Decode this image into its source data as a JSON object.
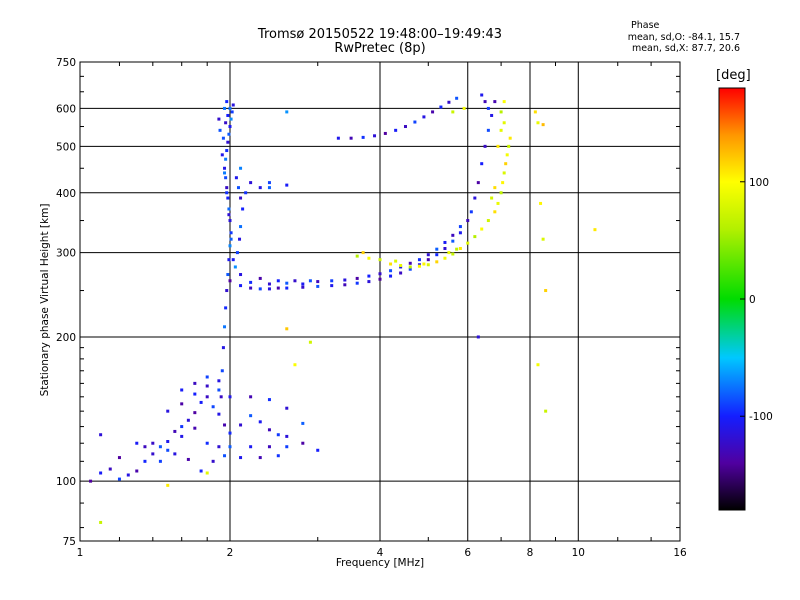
{
  "header": {
    "title_line1": "Tromsø 20150522 19:48:00–19:49:43",
    "title_line2": "RwPretec (8p)",
    "phase_title": "Phase",
    "phase_o": "mean, sd,O: -84.1, 15.7",
    "phase_x": "mean, sd,X:  87.7, 20.6"
  },
  "chart_data": {
    "type": "scatter",
    "xlabel": "Frequency [MHz]",
    "ylabel": "Stationary phase Virtual Height [km]",
    "xscale": "log",
    "yscale": "log",
    "xlim": [
      1,
      16
    ],
    "ylim": [
      75,
      750
    ],
    "x_ticks": [
      1,
      2,
      4,
      6,
      8,
      10,
      16
    ],
    "y_ticks": [
      75,
      100,
      200,
      300,
      400,
      500,
      600,
      750
    ],
    "grid": true,
    "colorbar": {
      "label": "[deg]",
      "range": [
        -180,
        180
      ],
      "ticks": [
        100,
        0,
        -100
      ]
    },
    "series": [
      {
        "trace": "low-frequency scatter (es/e region)",
        "phase": -110,
        "points": [
          [
            1.05,
            100
          ],
          [
            1.1,
            104
          ],
          [
            1.15,
            106
          ],
          [
            1.2,
            101
          ],
          [
            1.25,
            103
          ],
          [
            1.3,
            105
          ],
          [
            1.35,
            110
          ],
          [
            1.4,
            114
          ],
          [
            1.45,
            118
          ],
          [
            1.5,
            121
          ],
          [
            1.55,
            127
          ],
          [
            1.6,
            130
          ],
          [
            1.65,
            134
          ],
          [
            1.7,
            139
          ],
          [
            1.75,
            146
          ],
          [
            1.8,
            150
          ],
          [
            1.85,
            143
          ],
          [
            1.9,
            138
          ],
          [
            1.95,
            131
          ],
          [
            2.0,
            126
          ],
          [
            2.1,
            131
          ],
          [
            2.2,
            137
          ],
          [
            2.3,
            133
          ],
          [
            2.4,
            128
          ],
          [
            2.5,
            125
          ],
          [
            2.6,
            124
          ],
          [
            2.8,
            120
          ],
          [
            3.0,
            116
          ],
          [
            1.4,
            120
          ],
          [
            1.5,
            116
          ],
          [
            1.6,
            124
          ],
          [
            1.7,
            129
          ],
          [
            1.8,
            120
          ],
          [
            1.9,
            118
          ],
          [
            2.0,
            118
          ],
          [
            2.2,
            118
          ],
          [
            2.4,
            118
          ],
          [
            2.6,
            118
          ],
          [
            1.5,
            140
          ],
          [
            1.6,
            145
          ],
          [
            1.7,
            152
          ],
          [
            1.8,
            158
          ],
          [
            1.9,
            155
          ],
          [
            2.0,
            150
          ],
          [
            2.2,
            150
          ],
          [
            2.4,
            148
          ],
          [
            2.6,
            142
          ],
          [
            2.8,
            132
          ],
          [
            1.3,
            120
          ],
          [
            1.35,
            118
          ],
          [
            1.45,
            110
          ],
          [
            1.55,
            114
          ],
          [
            1.65,
            111
          ],
          [
            1.75,
            105
          ],
          [
            1.85,
            110
          ],
          [
            1.95,
            113
          ],
          [
            2.1,
            112
          ],
          [
            2.3,
            112
          ],
          [
            2.5,
            113
          ],
          [
            1.1,
            125
          ],
          [
            1.2,
            112
          ],
          [
            1.6,
            155
          ],
          [
            1.7,
            160
          ],
          [
            1.8,
            165
          ],
          [
            1.9,
            162
          ]
        ]
      },
      {
        "trace": "O-mode near 2 MHz vertical",
        "phase": -95,
        "points": [
          [
            1.92,
            150
          ],
          [
            1.93,
            170
          ],
          [
            1.94,
            190
          ],
          [
            1.95,
            210
          ],
          [
            1.96,
            230
          ],
          [
            1.97,
            250
          ],
          [
            1.98,
            270
          ],
          [
            1.99,
            290
          ],
          [
            2.0,
            310
          ],
          [
            2.01,
            330
          ],
          [
            2.0,
            350
          ],
          [
            1.99,
            370
          ],
          [
            1.98,
            390
          ],
          [
            1.97,
            410
          ],
          [
            1.96,
            430
          ],
          [
            1.95,
            450
          ],
          [
            1.96,
            470
          ],
          [
            1.97,
            490
          ],
          [
            1.98,
            510
          ],
          [
            1.99,
            530
          ],
          [
            2.0,
            550
          ],
          [
            2.01,
            570
          ],
          [
            2.02,
            590
          ],
          [
            2.03,
            610
          ],
          [
            2.0,
            600
          ],
          [
            1.98,
            580
          ],
          [
            1.96,
            560
          ],
          [
            1.94,
            520
          ],
          [
            1.93,
            480
          ],
          [
            1.95,
            440
          ],
          [
            1.97,
            400
          ],
          [
            1.99,
            360
          ],
          [
            2.01,
            320
          ],
          [
            2.03,
            290
          ],
          [
            2.05,
            280
          ],
          [
            2.07,
            300
          ],
          [
            2.09,
            320
          ],
          [
            2.1,
            340
          ],
          [
            2.12,
            370
          ],
          [
            2.1,
            390
          ],
          [
            2.08,
            410
          ],
          [
            2.06,
            430
          ],
          [
            2.1,
            450
          ],
          [
            2.15,
            400
          ],
          [
            2.2,
            420
          ],
          [
            2.4,
            410
          ],
          [
            2.6,
            415
          ],
          [
            2.6,
            590
          ],
          [
            2.4,
            420
          ],
          [
            2.3,
            410
          ],
          [
            1.95,
            600
          ],
          [
            1.97,
            620
          ],
          [
            1.9,
            570
          ],
          [
            1.91,
            540
          ]
        ]
      },
      {
        "trace": "O-mode F trace",
        "phase": -110,
        "points": [
          [
            2.0,
            262
          ],
          [
            2.1,
            256
          ],
          [
            2.2,
            253
          ],
          [
            2.3,
            252
          ],
          [
            2.4,
            252
          ],
          [
            2.5,
            253
          ],
          [
            2.6,
            253
          ],
          [
            2.8,
            254
          ],
          [
            3.0,
            255
          ],
          [
            3.2,
            256
          ],
          [
            3.4,
            257
          ],
          [
            3.6,
            259
          ],
          [
            3.8,
            261
          ],
          [
            4.0,
            264
          ],
          [
            4.2,
            268
          ],
          [
            4.4,
            272
          ],
          [
            4.6,
            277
          ],
          [
            4.8,
            283
          ],
          [
            5.0,
            290
          ],
          [
            5.2,
            297
          ],
          [
            5.4,
            306
          ],
          [
            5.6,
            317
          ],
          [
            5.8,
            330
          ],
          [
            6.0,
            350
          ],
          [
            6.1,
            365
          ],
          [
            6.2,
            390
          ],
          [
            6.3,
            420
          ],
          [
            6.4,
            460
          ],
          [
            6.5,
            500
          ],
          [
            6.6,
            540
          ],
          [
            6.7,
            580
          ],
          [
            6.8,
            620
          ],
          [
            2.2,
            260
          ],
          [
            2.4,
            258
          ],
          [
            2.6,
            259
          ],
          [
            2.8,
            258
          ],
          [
            3.0,
            261
          ],
          [
            3.2,
            262
          ],
          [
            3.4,
            263
          ],
          [
            3.6,
            265
          ],
          [
            3.8,
            268
          ],
          [
            4.0,
            271
          ],
          [
            4.2,
            275
          ],
          [
            4.4,
            280
          ],
          [
            4.6,
            285
          ],
          [
            4.8,
            290
          ],
          [
            5.0,
            297
          ],
          [
            5.2,
            305
          ],
          [
            5.4,
            315
          ],
          [
            5.6,
            326
          ],
          [
            5.8,
            340
          ],
          [
            2.1,
            270
          ],
          [
            2.3,
            265
          ],
          [
            2.5,
            262
          ],
          [
            2.7,
            262
          ],
          [
            2.9,
            262
          ],
          [
            3.3,
            520
          ],
          [
            3.5,
            520
          ],
          [
            3.7,
            522
          ],
          [
            3.9,
            526
          ],
          [
            4.1,
            532
          ],
          [
            4.3,
            540
          ],
          [
            4.5,
            550
          ],
          [
            4.7,
            562
          ],
          [
            4.9,
            576
          ],
          [
            5.1,
            590
          ],
          [
            5.3,
            604
          ],
          [
            5.5,
            618
          ],
          [
            5.7,
            630
          ],
          [
            6.4,
            640
          ],
          [
            6.5,
            620
          ],
          [
            6.6,
            600
          ],
          [
            6.3,
            200
          ]
        ]
      },
      {
        "trace": "X-mode F trace",
        "phase": 90,
        "points": [
          [
            3.6,
            295
          ],
          [
            3.8,
            292
          ],
          [
            4.0,
            290
          ],
          [
            4.2,
            284
          ],
          [
            4.4,
            282
          ],
          [
            4.6,
            280
          ],
          [
            4.8,
            281
          ],
          [
            5.0,
            283
          ],
          [
            5.2,
            287
          ],
          [
            5.4,
            292
          ],
          [
            5.6,
            298
          ],
          [
            5.8,
            306
          ],
          [
            6.0,
            314
          ],
          [
            6.2,
            324
          ],
          [
            6.4,
            336
          ],
          [
            6.6,
            350
          ],
          [
            6.8,
            365
          ],
          [
            6.9,
            380
          ],
          [
            7.0,
            400
          ],
          [
            7.05,
            420
          ],
          [
            7.1,
            440
          ],
          [
            7.15,
            460
          ],
          [
            7.2,
            480
          ],
          [
            7.25,
            500
          ],
          [
            7.3,
            520
          ],
          [
            7.1,
            560
          ],
          [
            7.0,
            590
          ],
          [
            7.1,
            620
          ],
          [
            6.7,
            390
          ],
          [
            6.8,
            410
          ],
          [
            5.5,
            300
          ],
          [
            5.7,
            305
          ],
          [
            4.9,
            284
          ],
          [
            4.3,
            288
          ],
          [
            3.7,
            300
          ],
          [
            5.9,
            600
          ],
          [
            5.6,
            590
          ],
          [
            6.9,
            500
          ],
          [
            7.0,
            540
          ]
        ]
      },
      {
        "trace": "sparse points",
        "phase": 100,
        "points": [
          [
            1.1,
            82
          ],
          [
            1.5,
            98
          ],
          [
            1.8,
            104
          ],
          [
            2.6,
            208
          ],
          [
            2.7,
            175
          ],
          [
            2.9,
            195
          ],
          [
            8.2,
            590
          ],
          [
            8.3,
            560
          ],
          [
            8.5,
            555
          ],
          [
            8.4,
            380
          ],
          [
            8.5,
            320
          ],
          [
            8.6,
            250
          ],
          [
            8.3,
            175
          ],
          [
            8.6,
            140
          ],
          [
            10.8,
            335
          ]
        ]
      }
    ]
  }
}
